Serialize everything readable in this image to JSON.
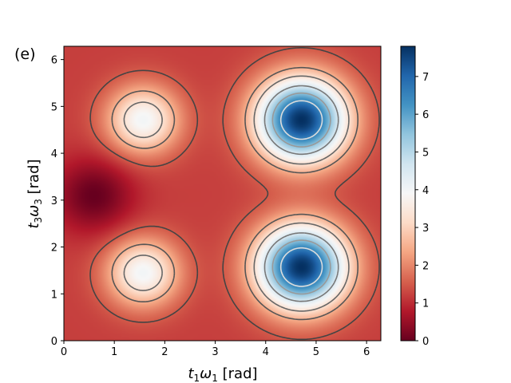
{
  "chart_data": {
    "type": "heatmap",
    "panel_label": "(e)",
    "xlabel_main": "t",
    "xlabel_sub1": "1",
    "xlabel_omega": "ω",
    "xlabel_sub2": "1",
    "xlabel_unit": " [rad]",
    "ylabel_main": "t",
    "ylabel_sub1": "3",
    "ylabel_omega": "ω",
    "ylabel_sub2": "3",
    "ylabel_unit": " [rad]",
    "xlim": [
      0,
      6.283
    ],
    "ylim": [
      0,
      6.283
    ],
    "xticks": [
      0,
      1,
      2,
      3,
      4,
      5,
      6
    ],
    "yticks": [
      0,
      1,
      2,
      3,
      4,
      5,
      6
    ],
    "xtick_labels": [
      "0",
      "1",
      "2",
      "3",
      "4",
      "5",
      "6"
    ],
    "ytick_labels": [
      "0",
      "1",
      "2",
      "3",
      "4",
      "5",
      "6"
    ],
    "colorbar": {
      "colormap": "RdBu",
      "vmin": 0,
      "vmax": 7.8,
      "ticks": [
        0,
        1,
        2,
        3,
        4,
        5,
        6,
        7
      ],
      "tick_labels": [
        "0",
        "1",
        "2",
        "3",
        "4",
        "5",
        "6",
        "7"
      ]
    },
    "features": [
      {
        "kind": "maximum",
        "x": 4.71,
        "y": 4.71,
        "value": 7.8
      },
      {
        "kind": "maximum",
        "x": 4.71,
        "y": 1.57,
        "value": 7.8
      },
      {
        "kind": "local-maximum",
        "x": 1.57,
        "y": 4.71,
        "value": 4.0
      },
      {
        "kind": "local-maximum",
        "x": 1.57,
        "y": 1.45,
        "value": 4.0
      },
      {
        "kind": "minimum",
        "x": 0.6,
        "y": 3.1,
        "value": 0.0
      }
    ],
    "contour_levels": [
      1.5,
      2.5,
      3.3,
      4.5,
      5.5,
      6.5
    ],
    "grid": false
  }
}
